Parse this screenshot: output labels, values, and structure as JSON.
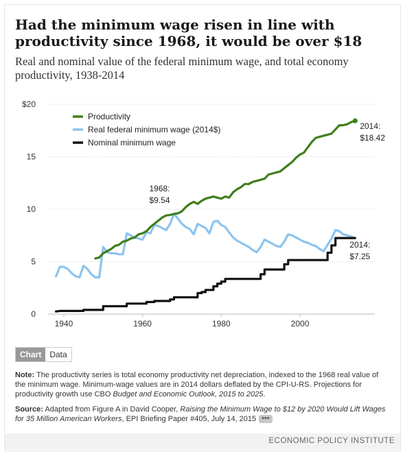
{
  "title": "Had the minimum wage risen in line with productivity since 1968, it would be over $18",
  "subtitle": "Real and nominal value of the federal minimum wage, and total economy productivity, 1938-2014",
  "tabs": {
    "chart": "Chart",
    "data": "Data"
  },
  "note": {
    "label": "Note:",
    "text": "The productivity series is total economy productivity net depreciation, indexed to the 1968 real value of the minimum wage. Minimum-wage values are in 2014 dollars deflated by the CPI-U-RS. Projections for productivity growth use CBO ",
    "italic": "Budget and Economic Outlook, 2015 to 2025",
    "end": "."
  },
  "source": {
    "label": "Source:",
    "text": "Adapted from Figure A in David Cooper, ",
    "italic": "Raising the Minimum Wage to $12 by 2020 Would Lift Wages for 35 Million American Workers",
    "end": ", EPI Briefing Paper #405, July 14, 2015",
    "more": "•••"
  },
  "footer": "ECONOMIC POLICY INSTITUTE",
  "colors": {
    "productivity": "#3f7e1b",
    "real": "#8cc4ee",
    "nominal": "#111111"
  },
  "chart_data": {
    "type": "line",
    "xlim": [
      1936,
      2019
    ],
    "ylim": [
      0,
      20
    ],
    "xticks": [
      "1940",
      "1960",
      "1980",
      "2000"
    ],
    "yticks": [
      "0",
      "5",
      "10",
      "15",
      "$20"
    ],
    "grid": "horizontal",
    "legend_position": "top-left",
    "series": [
      {
        "name": "Productivity",
        "color": "#3f7e1b",
        "x": [
          1948,
          1949,
          1950,
          1951,
          1952,
          1953,
          1954,
          1955,
          1956,
          1957,
          1958,
          1959,
          1960,
          1961,
          1962,
          1963,
          1964,
          1965,
          1966,
          1967,
          1968,
          1969,
          1970,
          1971,
          1972,
          1973,
          1974,
          1975,
          1976,
          1977,
          1978,
          1979,
          1980,
          1981,
          1982,
          1983,
          1984,
          1985,
          1986,
          1987,
          1988,
          1989,
          1990,
          1991,
          1992,
          1993,
          1994,
          1995,
          1996,
          1997,
          1998,
          1999,
          2000,
          2001,
          2002,
          2003,
          2004,
          2005,
          2006,
          2007,
          2008,
          2009,
          2010,
          2011,
          2012,
          2013,
          2014
        ],
        "values": [
          5.3,
          5.4,
          5.8,
          6.0,
          6.2,
          6.5,
          6.6,
          6.9,
          7.0,
          7.2,
          7.3,
          7.6,
          7.7,
          7.9,
          8.3,
          8.6,
          8.9,
          9.2,
          9.4,
          9.45,
          9.54,
          9.6,
          9.8,
          10.2,
          10.5,
          10.7,
          10.5,
          10.8,
          11.0,
          11.1,
          11.2,
          11.1,
          11.0,
          11.2,
          11.1,
          11.6,
          11.9,
          12.1,
          12.4,
          12.4,
          12.6,
          12.7,
          12.8,
          12.9,
          13.3,
          13.4,
          13.5,
          13.6,
          13.9,
          14.2,
          14.5,
          14.9,
          15.2,
          15.4,
          15.9,
          16.4,
          16.8,
          16.9,
          17.0,
          17.1,
          17.2,
          17.6,
          18.0,
          18.0,
          18.1,
          18.3,
          18.42
        ]
      },
      {
        "name": "Real federal minimum wage (2014$)",
        "color": "#8cc4ee",
        "x": [
          1938,
          1939,
          1940,
          1941,
          1942,
          1943,
          1944,
          1945,
          1946,
          1947,
          1948,
          1949,
          1950,
          1951,
          1952,
          1953,
          1954,
          1955,
          1956,
          1957,
          1958,
          1959,
          1960,
          1961,
          1962,
          1963,
          1964,
          1965,
          1966,
          1967,
          1968,
          1969,
          1970,
          1971,
          1972,
          1973,
          1974,
          1975,
          1976,
          1977,
          1978,
          1979,
          1980,
          1981,
          1982,
          1983,
          1984,
          1985,
          1986,
          1987,
          1988,
          1989,
          1990,
          1991,
          1992,
          1993,
          1994,
          1995,
          1996,
          1997,
          1998,
          1999,
          2000,
          2001,
          2002,
          2003,
          2004,
          2005,
          2006,
          2007,
          2008,
          2009,
          2010,
          2011,
          2012,
          2013,
          2014
        ],
        "values": [
          3.6,
          4.5,
          4.5,
          4.3,
          3.9,
          3.6,
          3.5,
          4.6,
          4.3,
          3.8,
          3.5,
          3.5,
          6.4,
          5.9,
          5.8,
          5.8,
          5.7,
          5.7,
          7.7,
          7.5,
          7.3,
          7.2,
          7.1,
          7.8,
          7.7,
          8.5,
          8.4,
          8.2,
          8.0,
          8.6,
          9.54,
          9.1,
          8.6,
          8.3,
          8.1,
          7.6,
          8.6,
          8.4,
          8.2,
          7.7,
          8.8,
          8.9,
          8.5,
          8.3,
          7.8,
          7.3,
          7.0,
          6.8,
          6.6,
          6.4,
          6.1,
          5.9,
          6.4,
          7.1,
          6.9,
          6.7,
          6.5,
          6.4,
          6.9,
          7.6,
          7.5,
          7.3,
          7.1,
          6.9,
          6.8,
          6.6,
          6.5,
          6.2,
          6.0,
          6.6,
          7.2,
          8.0,
          7.9,
          7.6,
          7.5,
          7.4,
          7.25
        ]
      },
      {
        "name": "Nominal minimum wage",
        "color": "#111111",
        "x": [
          1938,
          1939,
          1945,
          1945,
          1950,
          1950,
          1956,
          1956,
          1961,
          1961,
          1963,
          1963,
          1967,
          1967,
          1968,
          1968,
          1974,
          1974,
          1975,
          1975,
          1976,
          1976,
          1978,
          1978,
          1979,
          1979,
          1980,
          1980,
          1981,
          1981,
          1990,
          1990,
          1991,
          1991,
          1996,
          1996,
          1997,
          1997,
          2007,
          2007,
          2008,
          2008,
          2009,
          2009,
          2014
        ],
        "values": [
          0.25,
          0.3,
          0.3,
          0.4,
          0.4,
          0.75,
          0.75,
          1.0,
          1.0,
          1.15,
          1.15,
          1.25,
          1.25,
          1.4,
          1.4,
          1.6,
          1.6,
          2.0,
          2.0,
          2.1,
          2.1,
          2.3,
          2.3,
          2.65,
          2.65,
          2.9,
          2.9,
          3.1,
          3.1,
          3.35,
          3.35,
          3.8,
          3.8,
          4.25,
          4.25,
          4.75,
          4.75,
          5.15,
          5.15,
          5.85,
          5.85,
          6.55,
          6.55,
          7.25,
          7.25
        ]
      }
    ],
    "annotations": [
      {
        "year": "1968:",
        "value": "$9.54",
        "x": 1968,
        "y": 9.54
      },
      {
        "year": "2014:",
        "value": "$18.42",
        "x": 2014,
        "y": 18.42
      },
      {
        "year": "2014:",
        "value": "$7.25",
        "x": 2014,
        "y": 7.25
      }
    ]
  }
}
